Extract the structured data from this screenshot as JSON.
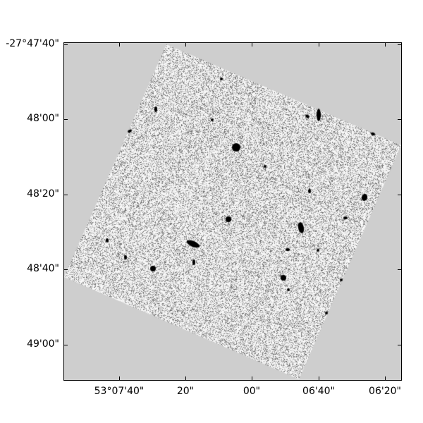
{
  "chart_data": {
    "type": "heatmap",
    "colormap": "grayscale (inverted)",
    "background_color": "#cecece",
    "x_ticks": [
      "53°07'40\"",
      "20\"",
      "00\"",
      "06'40\"",
      "06'20\""
    ],
    "y_ticks": [
      "-27°47'40\"",
      "48'00\"",
      "48'20\"",
      "48'40\"",
      "49'00\""
    ],
    "grid": false
  }
}
